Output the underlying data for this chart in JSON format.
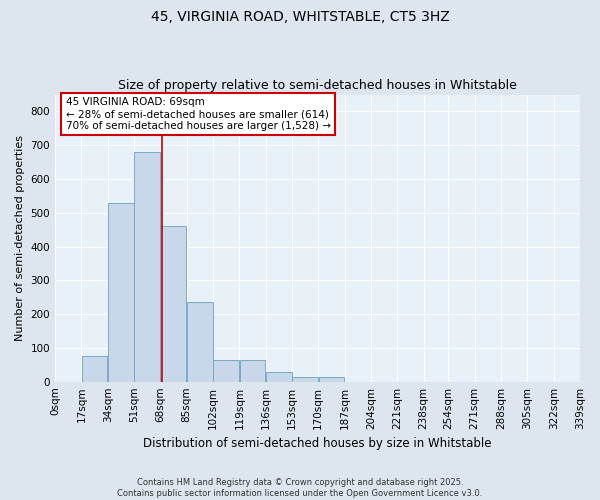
{
  "title1": "45, VIRGINIA ROAD, WHITSTABLE, CT5 3HZ",
  "title2": "Size of property relative to semi-detached houses in Whitstable",
  "xlabel": "Distribution of semi-detached houses by size in Whitstable",
  "ylabel": "Number of semi-detached properties",
  "bin_edges": [
    0,
    17,
    34,
    51,
    68,
    85,
    102,
    119,
    136,
    153,
    170,
    187,
    204,
    221,
    238,
    254,
    271,
    288,
    305,
    322,
    339
  ],
  "bar_heights": [
    0,
    75,
    530,
    680,
    460,
    235,
    65,
    65,
    30,
    15,
    15,
    0,
    0,
    0,
    0,
    0,
    0,
    0,
    0,
    0
  ],
  "bar_color": "#c8d8ea",
  "bar_edge_color": "#7aaac8",
  "property_line_x": 69,
  "property_line_color": "#cc0000",
  "annotation_title": "45 VIRGINIA ROAD: 69sqm",
  "annotation_line1": "← 28% of semi-detached houses are smaller (614)",
  "annotation_line2": "70% of semi-detached houses are larger (1,528) →",
  "annotation_box_facecolor": "#ffffff",
  "annotation_box_edgecolor": "#cc0000",
  "ylim": [
    0,
    850
  ],
  "yticks": [
    0,
    100,
    200,
    300,
    400,
    500,
    600,
    700,
    800
  ],
  "background_color": "#dde6ef",
  "plot_bg_color": "#e8f0f8",
  "footer_line1": "Contains HM Land Registry data © Crown copyright and database right 2025.",
  "footer_line2": "Contains public sector information licensed under the Open Government Licence v3.0.",
  "title1_fontsize": 10,
  "title2_fontsize": 9,
  "ylabel_fontsize": 8,
  "xlabel_fontsize": 8.5,
  "tick_fontsize": 7.5,
  "annotation_fontsize": 7.5,
  "footer_fontsize": 6.0
}
